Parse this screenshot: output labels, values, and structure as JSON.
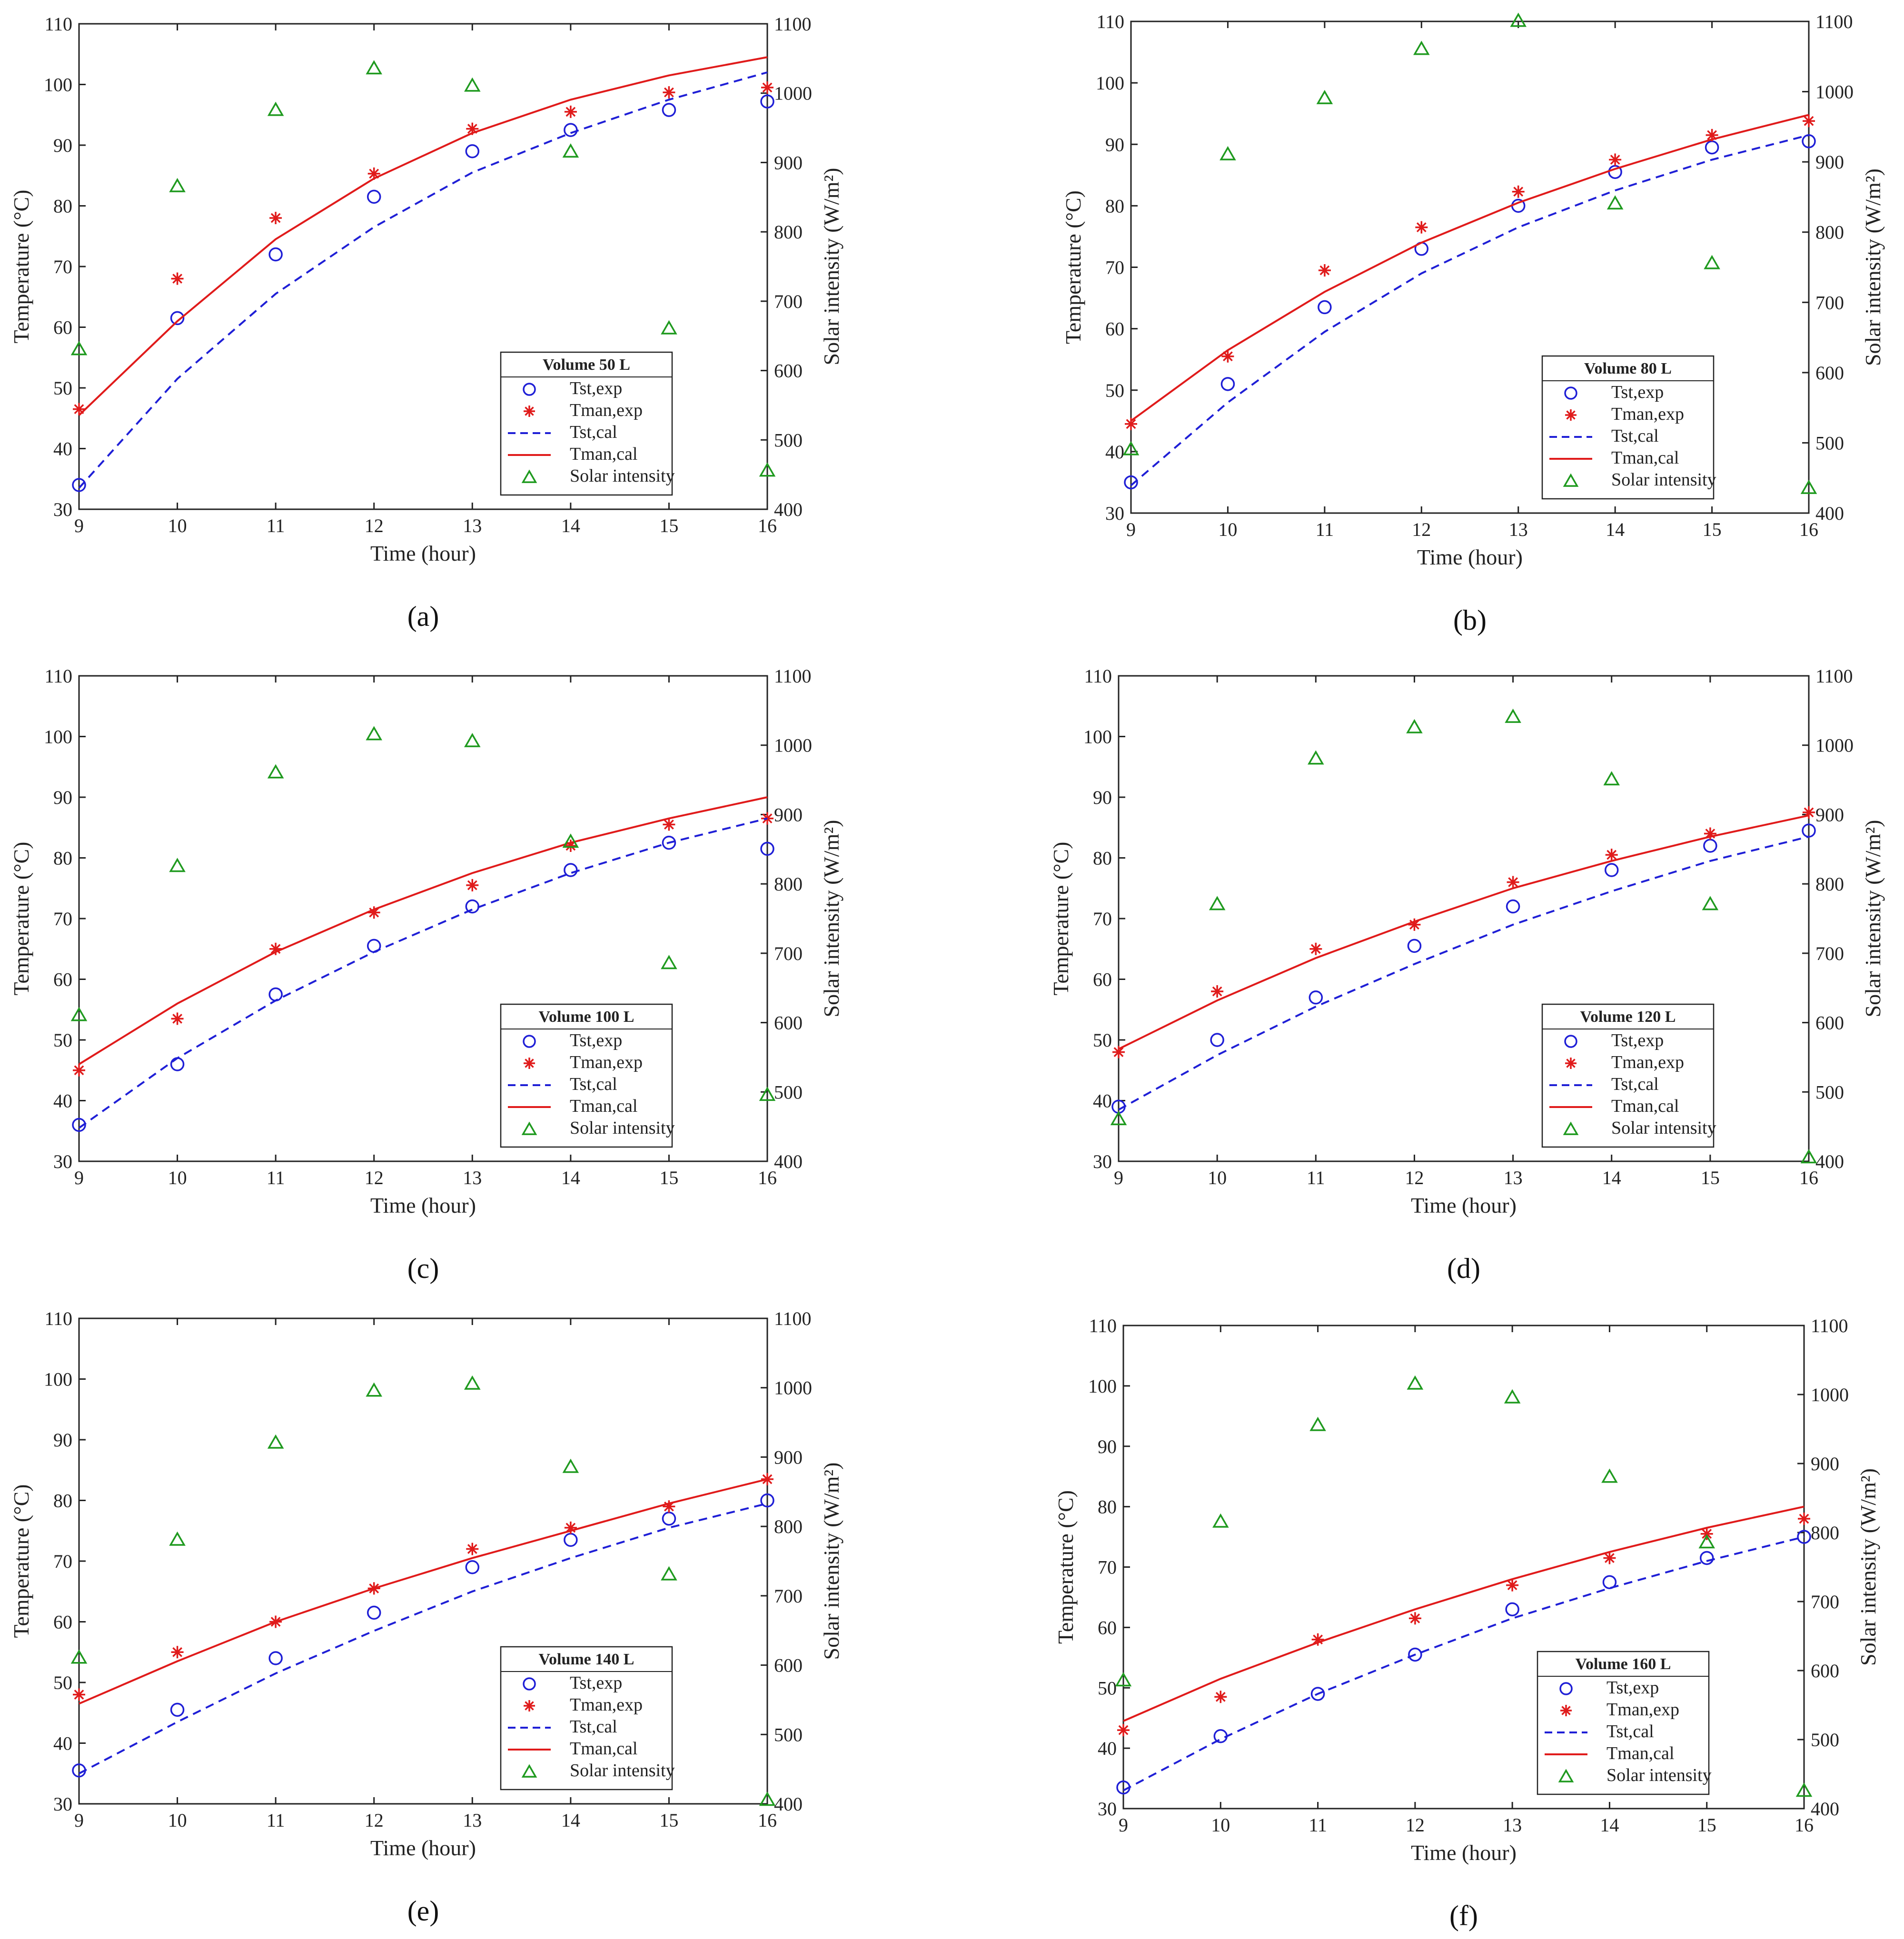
{
  "figure": {
    "style": {
      "tst_color": "#1f1fd6",
      "tman_color": "#e01b1b",
      "solar_color": "#1f9a1f",
      "axis_color": "#222222"
    }
  },
  "chart_data": [
    {
      "type": "scatter",
      "panel_label": "(a)",
      "legend_title": "Volume 50 L",
      "xlabel": "Time (hour)",
      "ylabel": "Temperature (°C)",
      "ylabel_right": "Solar intensity (W/m²)",
      "xlim": [
        9,
        16
      ],
      "ylim": [
        30,
        110
      ],
      "ylim_right": [
        400,
        1100
      ],
      "x": [
        9,
        10,
        11,
        12,
        13,
        14,
        15,
        16
      ],
      "series": [
        {
          "name": "Tst,exp",
          "kind": "circle",
          "values": [
            34.0,
            61.5,
            72.0,
            81.5,
            89.0,
            92.5,
            95.8,
            97.2
          ]
        },
        {
          "name": "Tman,exp",
          "kind": "star",
          "values": [
            46.5,
            68.0,
            78.0,
            85.3,
            92.7,
            95.5,
            98.7,
            99.5
          ]
        },
        {
          "name": "Tst,cal",
          "kind": "dashed",
          "values": [
            33.5,
            51.5,
            65.5,
            76.5,
            85.5,
            92.0,
            97.5,
            102.0
          ]
        },
        {
          "name": "Tman,cal",
          "kind": "line",
          "values": [
            45.5,
            61.0,
            74.5,
            84.5,
            92.0,
            97.5,
            101.5,
            104.5
          ]
        },
        {
          "name": "Solar intensity",
          "kind": "triangle",
          "axis": "right",
          "values": [
            630,
            865,
            975,
            1035,
            1010,
            915,
            660,
            455
          ]
        }
      ]
    },
    {
      "type": "scatter",
      "panel_label": "(b)",
      "legend_title": "Volume 80 L",
      "xlabel": "Time (hour)",
      "ylabel": "Temperature (°C)",
      "ylabel_right": "Solar intensity (W/m²)",
      "xlim": [
        9,
        16
      ],
      "ylim": [
        30,
        110
      ],
      "ylim_right": [
        400,
        1100
      ],
      "x": [
        9,
        10,
        11,
        12,
        13,
        14,
        15,
        16
      ],
      "series": [
        {
          "name": "Tst,exp",
          "kind": "circle",
          "values": [
            35.0,
            51.0,
            63.5,
            73.0,
            80.0,
            85.5,
            89.5,
            90.5
          ]
        },
        {
          "name": "Tman,exp",
          "kind": "star",
          "values": [
            44.5,
            55.5,
            69.5,
            76.5,
            82.3,
            87.5,
            91.5,
            93.8
          ]
        },
        {
          "name": "Tst,cal",
          "kind": "dashed",
          "values": [
            34.5,
            48.0,
            59.5,
            69.0,
            76.5,
            82.5,
            87.5,
            91.5
          ]
        },
        {
          "name": "Tman,cal",
          "kind": "line",
          "values": [
            45.0,
            56.5,
            66.0,
            74.0,
            80.5,
            86.0,
            90.8,
            94.8
          ]
        },
        {
          "name": "Solar intensity",
          "kind": "triangle",
          "axis": "right",
          "values": [
            490,
            910,
            990,
            1060,
            1100,
            840,
            755,
            435
          ]
        }
      ]
    },
    {
      "type": "scatter",
      "panel_label": "(c)",
      "legend_title": "Volume 100 L",
      "xlabel": "Time (hour)",
      "ylabel": "Temperature (°C)",
      "ylabel_right": "Solar intensity (W/m²)",
      "xlim": [
        9,
        16
      ],
      "ylim": [
        30,
        110
      ],
      "ylim_right": [
        400,
        1100
      ],
      "x": [
        9,
        10,
        11,
        12,
        13,
        14,
        15,
        16
      ],
      "series": [
        {
          "name": "Tst,exp",
          "kind": "circle",
          "values": [
            36.0,
            46.0,
            57.5,
            65.5,
            72.0,
            78.0,
            82.5,
            81.5
          ]
        },
        {
          "name": "Tman,exp",
          "kind": "star",
          "values": [
            45.0,
            53.5,
            65.0,
            71.0,
            75.5,
            82.0,
            85.5,
            86.5
          ]
        },
        {
          "name": "Tst,cal",
          "kind": "dashed",
          "values": [
            35.5,
            47.0,
            56.5,
            64.5,
            71.5,
            77.5,
            82.5,
            86.5
          ]
        },
        {
          "name": "Tman,cal",
          "kind": "line",
          "values": [
            46.0,
            56.0,
            64.5,
            71.5,
            77.5,
            82.5,
            86.5,
            90.0
          ]
        },
        {
          "name": "Solar intensity",
          "kind": "triangle",
          "axis": "right",
          "values": [
            610,
            825,
            960,
            1015,
            1005,
            860,
            685,
            495
          ]
        }
      ]
    },
    {
      "type": "scatter",
      "panel_label": "(d)",
      "legend_title": "Volume 120 L",
      "xlabel": "Time (hour)",
      "ylabel": "Temperature (°C)",
      "ylabel_right": "Solar intensity (W/m²)",
      "xlim": [
        9,
        16
      ],
      "ylim": [
        30,
        110
      ],
      "ylim_right": [
        400,
        1100
      ],
      "x": [
        9,
        10,
        11,
        12,
        13,
        14,
        15,
        16
      ],
      "series": [
        {
          "name": "Tst,exp",
          "kind": "circle",
          "values": [
            39.0,
            50.0,
            57.0,
            65.5,
            72.0,
            78.0,
            82.0,
            84.5
          ]
        },
        {
          "name": "Tman,exp",
          "kind": "star",
          "values": [
            48.0,
            58.0,
            65.0,
            69.0,
            76.0,
            80.5,
            84.0,
            87.5
          ]
        },
        {
          "name": "Tst,cal",
          "kind": "dashed",
          "values": [
            38.5,
            47.5,
            55.5,
            62.5,
            69.0,
            74.5,
            79.5,
            83.5
          ]
        },
        {
          "name": "Tman,cal",
          "kind": "line",
          "values": [
            48.5,
            56.5,
            63.5,
            69.5,
            75.0,
            79.5,
            83.5,
            87.0
          ]
        },
        {
          "name": "Solar intensity",
          "kind": "triangle",
          "axis": "right",
          "values": [
            460,
            770,
            980,
            1025,
            1040,
            950,
            770,
            405
          ]
        }
      ]
    },
    {
      "type": "scatter",
      "panel_label": "(e)",
      "legend_title": "Volume 140 L",
      "xlabel": "Time (hour)",
      "ylabel": "Temperature (°C)",
      "ylabel_right": "Solar intensity (W/m²)",
      "xlim": [
        9,
        16
      ],
      "ylim": [
        30,
        110
      ],
      "ylim_right": [
        400,
        1100
      ],
      "x": [
        9,
        10,
        11,
        12,
        13,
        14,
        15,
        16
      ],
      "series": [
        {
          "name": "Tst,exp",
          "kind": "circle",
          "values": [
            35.5,
            45.5,
            54.0,
            61.5,
            69.0,
            73.5,
            77.0,
            80.0
          ]
        },
        {
          "name": "Tman,exp",
          "kind": "star",
          "values": [
            48.0,
            55.0,
            60.0,
            65.5,
            72.0,
            75.5,
            79.0,
            83.5
          ]
        },
        {
          "name": "Tst,cal",
          "kind": "dashed",
          "values": [
            35.0,
            43.5,
            51.5,
            58.5,
            65.0,
            70.5,
            75.5,
            79.5
          ]
        },
        {
          "name": "Tman,cal",
          "kind": "line",
          "values": [
            46.5,
            53.5,
            60.0,
            65.5,
            70.5,
            75.0,
            79.5,
            83.5
          ]
        },
        {
          "name": "Solar intensity",
          "kind": "triangle",
          "axis": "right",
          "values": [
            610,
            780,
            920,
            995,
            1005,
            885,
            730,
            405
          ]
        }
      ]
    },
    {
      "type": "scatter",
      "panel_label": "(f)",
      "legend_title": "Volume 160 L",
      "xlabel": "Time (hour)",
      "ylabel": "Temperature (°C)",
      "ylabel_right": "Solar intensity (W/m²)",
      "xlim": [
        9,
        16
      ],
      "ylim": [
        30,
        110
      ],
      "ylim_right": [
        400,
        1100
      ],
      "x": [
        9,
        10,
        11,
        12,
        13,
        14,
        15,
        16
      ],
      "series": [
        {
          "name": "Tst,exp",
          "kind": "circle",
          "values": [
            33.5,
            42.0,
            49.0,
            55.5,
            63.0,
            67.5,
            71.5,
            75.0
          ]
        },
        {
          "name": "Tman,exp",
          "kind": "star",
          "values": [
            43.0,
            48.5,
            58.0,
            61.5,
            67.0,
            71.5,
            75.5,
            78.0
          ]
        },
        {
          "name": "Tst,cal",
          "kind": "dashed",
          "values": [
            33.0,
            41.5,
            49.0,
            55.5,
            61.5,
            66.5,
            71.0,
            75.0
          ]
        },
        {
          "name": "Tman,cal",
          "kind": "line",
          "values": [
            44.5,
            51.5,
            57.5,
            63.0,
            68.0,
            72.5,
            76.5,
            80.0
          ]
        },
        {
          "name": "Solar intensity",
          "kind": "triangle",
          "axis": "right",
          "values": [
            585,
            815,
            955,
            1015,
            995,
            880,
            785,
            425
          ]
        }
      ]
    }
  ]
}
